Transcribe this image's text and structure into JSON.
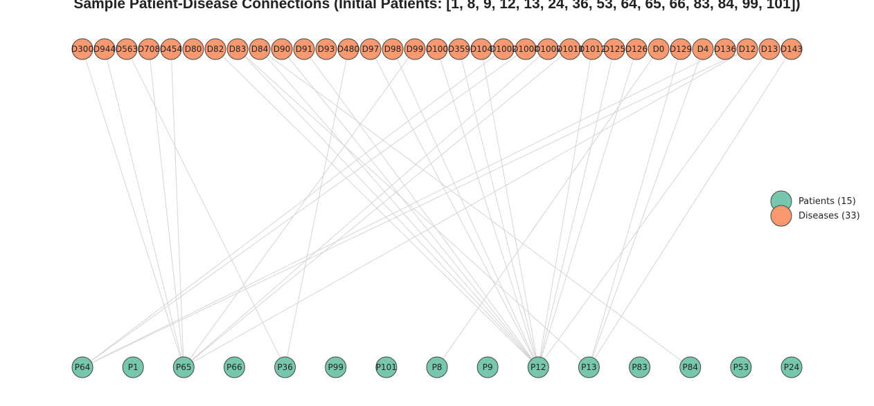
{
  "title": "Sample Patient-Disease Connections (Initial Patients: [1, 8, 9, 12, 13, 24, 36, 53, 64, 65, 66, 83, 84, 99, 101])",
  "colors": {
    "patient": "#77c6ae",
    "disease": "#f89970",
    "edge": "#d4d4d4",
    "stroke": "#444444"
  },
  "chart_data": {
    "type": "bipartite-graph",
    "diseases": [
      "D300",
      "D944",
      "D563",
      "D708",
      "D454",
      "D80",
      "D82",
      "D83",
      "D84",
      "D90",
      "D91",
      "D93",
      "D480",
      "D97",
      "D98",
      "D99",
      "D100",
      "D359",
      "D104",
      "D1002",
      "D1004",
      "D1007",
      "D1011",
      "D1012",
      "D125",
      "D126",
      "D0",
      "D129",
      "D4",
      "D136",
      "D12",
      "D13",
      "D143"
    ],
    "patients": [
      "P64",
      "P1",
      "P65",
      "P66",
      "P36",
      "P99",
      "P101",
      "P8",
      "P9",
      "P12",
      "P13",
      "P83",
      "P84",
      "P53",
      "P24"
    ],
    "edges": [
      [
        "D300",
        "P65"
      ],
      [
        "D944",
        "P65"
      ],
      [
        "D563",
        "P36"
      ],
      [
        "D708",
        "P65"
      ],
      [
        "D454",
        "P65"
      ],
      [
        "D82",
        "P12"
      ],
      [
        "D83",
        "P12"
      ],
      [
        "D83",
        "P13"
      ],
      [
        "D84",
        "P12"
      ],
      [
        "D84",
        "P84"
      ],
      [
        "D90",
        "P12"
      ],
      [
        "D91",
        "P12"
      ],
      [
        "D480",
        "P36"
      ],
      [
        "D97",
        "P12"
      ],
      [
        "D98",
        "P12"
      ],
      [
        "D99",
        "P65"
      ],
      [
        "D100",
        "P12"
      ],
      [
        "D359",
        "P12"
      ],
      [
        "D104",
        "P12"
      ],
      [
        "D1002",
        "P64"
      ],
      [
        "D1004",
        "P64"
      ],
      [
        "D1007",
        "P65"
      ],
      [
        "D1011",
        "P65"
      ],
      [
        "D1012",
        "P12"
      ],
      [
        "D125",
        "P12"
      ],
      [
        "D126",
        "P12"
      ],
      [
        "D0",
        "P8"
      ],
      [
        "D129",
        "P13"
      ],
      [
        "D4",
        "P13"
      ],
      [
        "D136",
        "P64"
      ],
      [
        "D12",
        "P64"
      ],
      [
        "D12",
        "P65"
      ],
      [
        "D13",
        "P12"
      ],
      [
        "D143",
        "P13"
      ]
    ],
    "legend": [
      {
        "label": "Patients (15)",
        "kind": "patient"
      },
      {
        "label": "Diseases (33)",
        "kind": "disease"
      }
    ]
  }
}
